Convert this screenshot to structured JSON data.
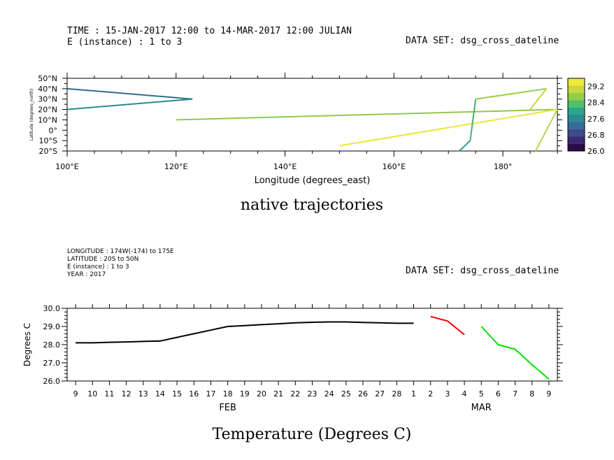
{
  "top_panel": {
    "header_time": "TIME : 15-JAN-2017 12:00 to 14-MAR-2017 12:00 JULIAN",
    "header_instance": "E (instance) : 1 to 3",
    "dataset": "DATA SET: dsg_cross_dateline",
    "title": "native trajectories"
  },
  "bottom_panel": {
    "header_lines": [
      "LONGITUDE : 174W(-174) to 175E",
      "LATITUDE : 20S to 50N",
      "E (instance) : 1 to 3",
      "YEAR : 2017"
    ],
    "dataset": "DATA SET: dsg_cross_dateline",
    "title": "Temperature (Degrees C)"
  },
  "chart_data": [
    {
      "type": "line",
      "name": "trajectory map",
      "xlabel": "Longitude (degrees_east)",
      "ylabel": "Latitude (degrees_north)",
      "xlim": [
        100,
        190
      ],
      "ylim": [
        -20,
        50
      ],
      "xticks": [
        {
          "v": 100,
          "label": "100°E"
        },
        {
          "v": 120,
          "label": "120°E"
        },
        {
          "v": 140,
          "label": "140°E"
        },
        {
          "v": 160,
          "label": "160°E"
        },
        {
          "v": 180,
          "label": "180°"
        }
      ],
      "yticks": [
        {
          "v": 50,
          "label": "50°N"
        },
        {
          "v": 40,
          "label": "40°N"
        },
        {
          "v": 30,
          "label": "30°N"
        },
        {
          "v": 20,
          "label": "20°N"
        },
        {
          "v": 10,
          "label": "10°N"
        },
        {
          "v": 0,
          "label": "0°"
        },
        {
          "v": -10,
          "label": "10°S"
        },
        {
          "v": -20,
          "label": "20°S"
        }
      ],
      "colorbar": {
        "range": [
          26.0,
          29.6
        ],
        "labels": [
          "29.2",
          "28.4",
          "27.6",
          "26.8",
          "26.0"
        ],
        "label_values": [
          29.2,
          28.4,
          27.6,
          26.8,
          26.0
        ],
        "colors": [
          "#2d0a4a",
          "#3b2a6e",
          "#3f4a8a",
          "#356d96",
          "#2b8a95",
          "#2aa68a",
          "#54bd6a",
          "#93cd4a",
          "#c8d83e",
          "#eee93a"
        ]
      },
      "segments": [
        {
          "from": [
            100,
            40
          ],
          "to": [
            123,
            30
          ],
          "color": "#2d6e8e"
        },
        {
          "from": [
            100,
            20
          ],
          "to": [
            123,
            30
          ],
          "color": "#2a8a8c"
        },
        {
          "from": [
            120,
            10
          ],
          "to": [
            190,
            20
          ],
          "color": "#93c84c"
        },
        {
          "from": [
            190,
            20
          ],
          "to": [
            186,
            -20
          ],
          "color": "#b8d645"
        },
        {
          "from": [
            150,
            -15
          ],
          "to": [
            190,
            20
          ],
          "color": "#e9e638"
        },
        {
          "from": [
            172,
            -20
          ],
          "to": [
            174,
            -10
          ],
          "color": "#2a9d8c"
        },
        {
          "from": [
            174,
            -10
          ],
          "to": [
            175,
            30
          ],
          "color": "#46b074"
        },
        {
          "from": [
            175,
            30
          ],
          "to": [
            188,
            40
          ],
          "color": "#9bcf48"
        },
        {
          "from": [
            188,
            40
          ],
          "to": [
            185,
            20
          ],
          "color": "#c3d840"
        }
      ]
    },
    {
      "type": "line",
      "name": "temperature time series",
      "ylabel": "Degrees C",
      "ylim": [
        26.0,
        30.0
      ],
      "yticks": [
        "30.0",
        "29.0",
        "28.0",
        "27.0",
        "26.0"
      ],
      "x_start_day": 9,
      "x_end_day": 38,
      "day_labels": [
        "9",
        "10",
        "11",
        "12",
        "13",
        "14",
        "15",
        "16",
        "17",
        "18",
        "19",
        "20",
        "21",
        "22",
        "23",
        "24",
        "25",
        "26",
        "27",
        "28",
        "1",
        "2",
        "3",
        "4",
        "5",
        "6",
        "7",
        "8",
        "9"
      ],
      "month_labels": [
        {
          "day": 18,
          "label": "FEB"
        },
        {
          "day": 33,
          "label": "MAR"
        }
      ],
      "series": [
        {
          "color": "#000000",
          "x": [
            9,
            10,
            11,
            12,
            13,
            14,
            15,
            16,
            17,
            18,
            19,
            20,
            21,
            22,
            23,
            24,
            25,
            26,
            27,
            28,
            29
          ],
          "y": [
            28.1,
            28.1,
            28.13,
            28.15,
            28.18,
            28.2,
            28.4,
            28.6,
            28.8,
            29.0,
            29.05,
            29.1,
            29.15,
            29.2,
            29.23,
            29.25,
            29.25,
            29.22,
            29.2,
            29.18,
            29.18
          ]
        },
        {
          "color": "#ff0000",
          "x": [
            30,
            31,
            32
          ],
          "y": [
            29.55,
            29.3,
            28.55
          ]
        },
        {
          "color": "#00e000",
          "x": [
            33,
            34,
            35,
            36,
            37
          ],
          "y": [
            29.0,
            28.0,
            27.75,
            26.9,
            26.1
          ]
        }
      ]
    }
  ]
}
